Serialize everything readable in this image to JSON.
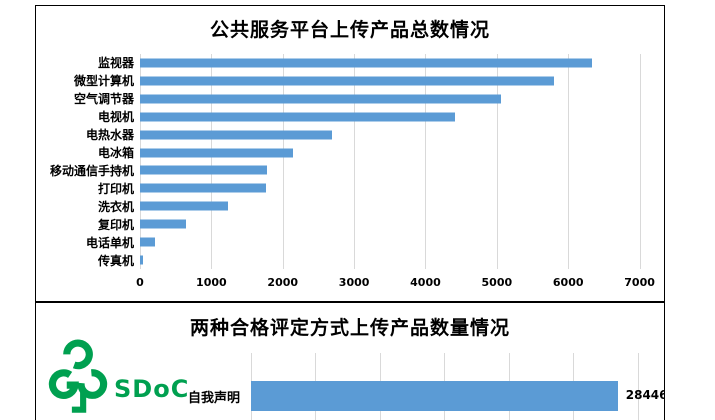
{
  "colors": {
    "bar_blue": "#5B9BD5",
    "gridline": "#D9D9D9",
    "border": "#000000",
    "logo_green": "#00A050"
  },
  "logo": {
    "text": "SDoC",
    "mark": "green-product-gp-tree-logo"
  },
  "chart_data": [
    {
      "type": "bar",
      "orientation": "horizontal",
      "title": "公共服务平台上传产品总数情况",
      "categories": [
        "监视器",
        "微型计算机",
        "空气调节器",
        "电视机",
        "电热水器",
        "电冰箱",
        "移动通信手持机",
        "打印机",
        "洗衣机",
        "复印机",
        "电话单机",
        "传真机"
      ],
      "values": [
        6330,
        5800,
        5060,
        4410,
        2690,
        2140,
        1785,
        1765,
        1230,
        645,
        210,
        40
      ],
      "xlabel": "",
      "ylabel": "",
      "xlim": [
        0,
        7300
      ],
      "x_ticks": [
        0,
        1000,
        2000,
        3000,
        4000,
        5000,
        6000,
        7000
      ],
      "grid": true,
      "legend": false,
      "bar_color": "#5B9BD5"
    },
    {
      "type": "bar",
      "orientation": "horizontal",
      "title": "两种合格评定方式上传产品数量情况",
      "categories": [
        "自我声明"
      ],
      "values": [
        28446
      ],
      "data_labels": [
        28446
      ],
      "xlabel": "",
      "ylabel": "",
      "xlim": [
        0,
        31800
      ],
      "gridline_interval": 5000,
      "grid": true,
      "legend": false,
      "bar_color": "#5B9BD5"
    }
  ]
}
